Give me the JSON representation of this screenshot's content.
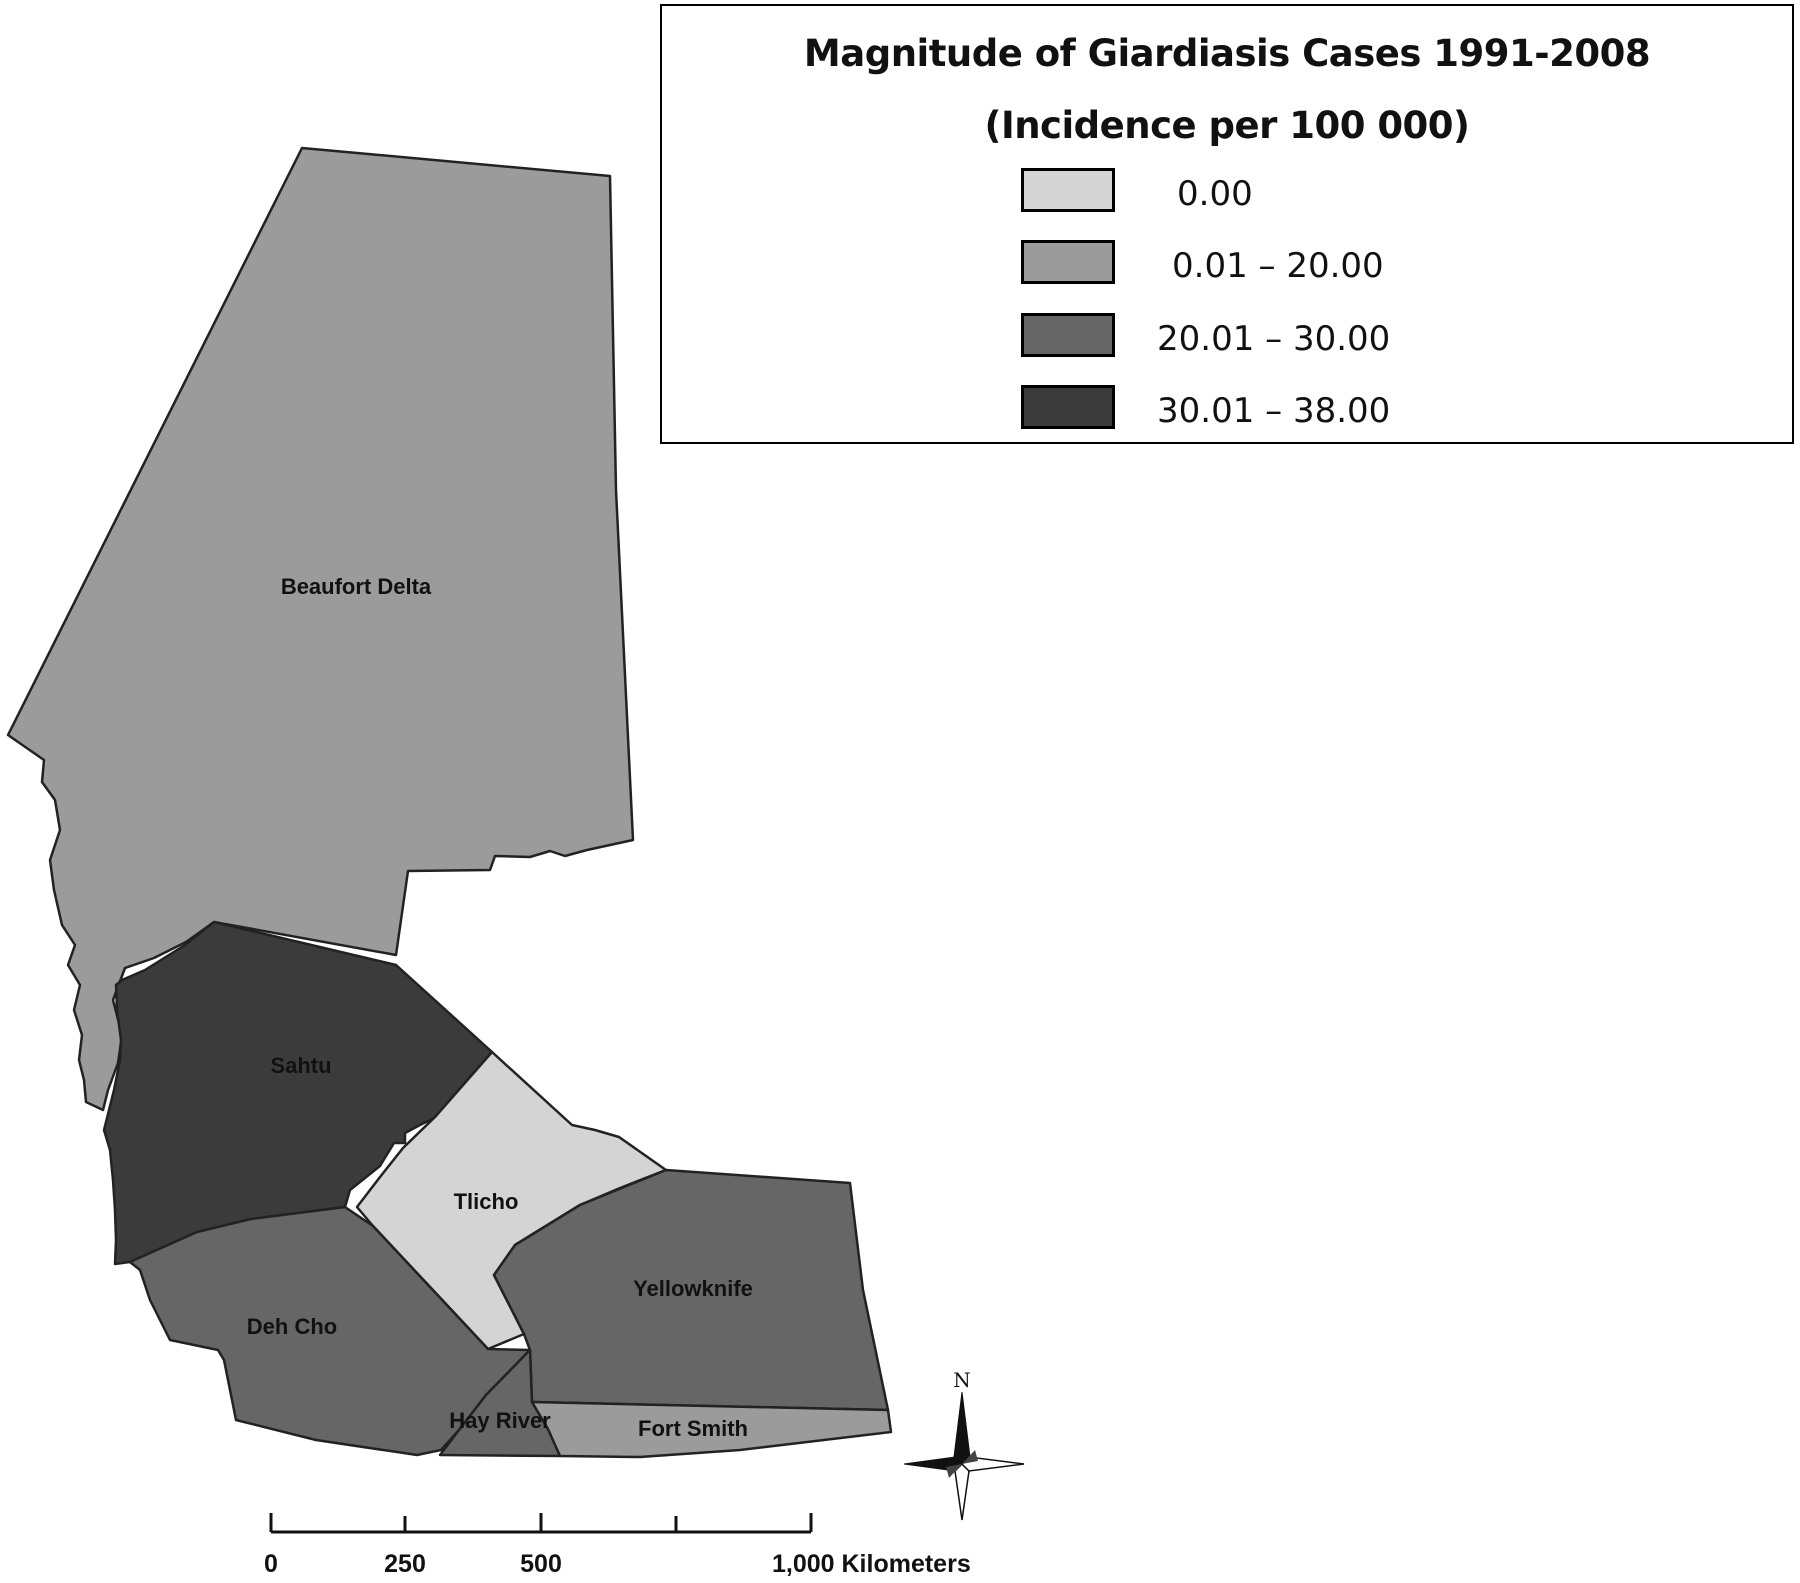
{
  "legend": {
    "title_line1": "Magnitude of Giardiasis Cases 1991-2008",
    "title_line2": "(Incidence per 100 000)",
    "classes": [
      {
        "label": "0.00",
        "color": "#d4d4d4"
      },
      {
        "label": "0.01 – 20.00",
        "color": "#9b9b9b"
      },
      {
        "label": "20.01 – 30.00",
        "color": "#666666"
      },
      {
        "label": "30.01 – 38.00",
        "color": "#3b3b3b"
      }
    ]
  },
  "regions": {
    "beaufort_delta": {
      "name": "Beaufort Delta",
      "class": 1
    },
    "sahtu": {
      "name": "Sahtu",
      "class": 3
    },
    "tlicho": {
      "name": "Tlicho",
      "class": 0
    },
    "deh_cho": {
      "name": "Deh Cho",
      "class": 2
    },
    "yellowknife": {
      "name": "Yellowknife",
      "class": 2
    },
    "hay_river": {
      "name": "Hay River",
      "class": 2
    },
    "fort_smith": {
      "name": "Fort Smith",
      "class": 1
    }
  },
  "scale_bar": {
    "ticks": [
      "0",
      "250",
      "500",
      "1,000 Kilometers"
    ]
  },
  "north_arrow": {
    "label": "N"
  }
}
